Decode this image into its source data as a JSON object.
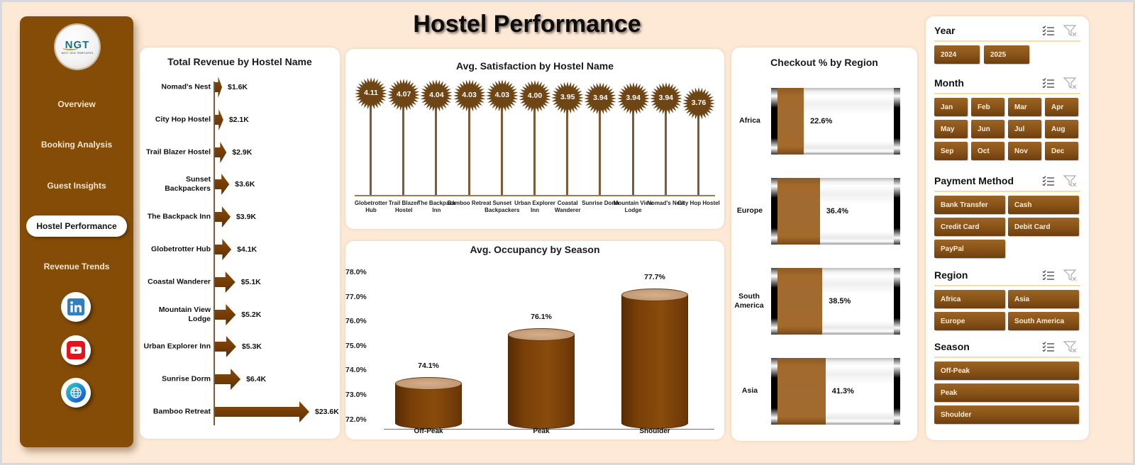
{
  "header": {
    "title": "Hostel Performance"
  },
  "sidebar": {
    "logo": {
      "text": "NGT",
      "subtitle": "NEXT GEN TEMPLATES"
    },
    "items": [
      {
        "label": "Overview",
        "active": false
      },
      {
        "label": "Booking Analysis",
        "active": false
      },
      {
        "label": "Guest Insights",
        "active": false
      },
      {
        "label": "Hostel Performance",
        "active": true
      },
      {
        "label": "Revenue Trends",
        "active": false
      }
    ],
    "social": [
      {
        "icon": "linkedin-icon",
        "glyph": "in"
      },
      {
        "icon": "youtube-icon",
        "glyph": "▶"
      },
      {
        "icon": "globe-icon",
        "glyph": "🌐"
      }
    ]
  },
  "colors": {
    "brand": "#844c06",
    "page_bg": "#fde9d6",
    "bar": "#7a3f06",
    "fill": "#a06a30",
    "accent_line": "#f1dfa3"
  },
  "revenue_chart": {
    "title": "Total Revenue  by Hostel Name",
    "rows": [
      {
        "name": "Nomad's Nest",
        "label": "$1.6K"
      },
      {
        "name": "City Hop Hostel",
        "label": "$2.1K"
      },
      {
        "name": "Trail Blazer Hostel",
        "label": "$2.9K"
      },
      {
        "name": "Sunset Backpackers",
        "label": "$3.6K"
      },
      {
        "name": "The Backpack Inn",
        "label": "$3.9K"
      },
      {
        "name": "Globetrotter Hub",
        "label": "$4.1K"
      },
      {
        "name": "Coastal Wanderer",
        "label": "$5.1K"
      },
      {
        "name": "Mountain View Lodge",
        "label": "$5.2K"
      },
      {
        "name": "Urban Explorer Inn",
        "label": "$5.3K"
      },
      {
        "name": "Sunrise Dorm",
        "label": "$6.4K"
      },
      {
        "name": "Bamboo Retreat",
        "label": "$23.6K"
      }
    ]
  },
  "satisfaction_chart": {
    "title": "Avg. Satisfaction by Hostel Name",
    "items": [
      {
        "name": "Globetrotter Hub",
        "label": "4.11"
      },
      {
        "name": "Trail Blazer Hostel",
        "label": "4.07"
      },
      {
        "name": "The Backpack Inn",
        "label": "4.04"
      },
      {
        "name": "Bamboo Retreat",
        "label": "4.03"
      },
      {
        "name": "Sunset Backpackers",
        "label": "4.03"
      },
      {
        "name": "Urban Explorer Inn",
        "label": "4.00"
      },
      {
        "name": "Coastal Wanderer",
        "label": "3.95"
      },
      {
        "name": "Sunrise Dorm",
        "label": "3.94"
      },
      {
        "name": "Mountain View Lodge",
        "label": "3.94"
      },
      {
        "name": "Nomad's Nest",
        "label": "3.94"
      },
      {
        "name": "City Hop Hostel",
        "label": "3.76"
      }
    ]
  },
  "occupancy_chart": {
    "title": "Avg. Occupancy by Season",
    "ticks": [
      "78.0%",
      "77.0%",
      "76.0%",
      "75.0%",
      "74.0%",
      "73.0%",
      "72.0%"
    ],
    "items": [
      {
        "name": "Off-Peak",
        "label": "74.1%"
      },
      {
        "name": "Peak",
        "label": "76.1%"
      },
      {
        "name": "Shoulder",
        "label": "77.7%"
      }
    ]
  },
  "checkout_chart": {
    "title": "Checkout  % by Region",
    "items": [
      {
        "name": "Africa",
        "label": "22.6%"
      },
      {
        "name": "Europe",
        "label": "36.4%"
      },
      {
        "name": "South America",
        "label": "38.5%"
      },
      {
        "name": "Asia",
        "label": "41.3%"
      }
    ]
  },
  "slicers": {
    "year": {
      "title": "Year",
      "options": [
        "2024",
        "2025"
      ]
    },
    "month": {
      "title": "Month",
      "options": [
        "Jan",
        "Feb",
        "Mar",
        "Apr",
        "May",
        "Jun",
        "Jul",
        "Aug",
        "Sep",
        "Oct",
        "Nov",
        "Dec"
      ]
    },
    "payment": {
      "title": "Payment Method",
      "options": [
        "Bank Transfer",
        "Cash",
        "Credit Card",
        "Debit Card",
        "PayPal"
      ]
    },
    "region": {
      "title": "Region",
      "options": [
        "Africa",
        "Asia",
        "Europe",
        "South America"
      ]
    },
    "season": {
      "title": "Season",
      "options": [
        "Off-Peak",
        "Peak",
        "Shoulder"
      ]
    }
  },
  "chart_data": [
    {
      "type": "bar",
      "title": "Total Revenue  by Hostel Name",
      "orientation": "horizontal",
      "categories": [
        "Nomad's Nest",
        "City Hop Hostel",
        "Trail Blazer Hostel",
        "Sunset Backpackers",
        "The Backpack Inn",
        "Globetrotter Hub",
        "Coastal Wanderer",
        "Mountain View Lodge",
        "Urban Explorer Inn",
        "Sunrise Dorm",
        "Bamboo Retreat"
      ],
      "values": [
        1.6,
        2.1,
        2.9,
        3.6,
        3.9,
        4.1,
        5.1,
        5.2,
        5.3,
        6.4,
        23.6
      ],
      "unit": "$K",
      "xlabel": "",
      "ylabel": ""
    },
    {
      "type": "bar",
      "title": "Avg. Satisfaction by Hostel Name",
      "style": "lollipop",
      "categories": [
        "Globetrotter Hub",
        "Trail Blazer Hostel",
        "The Backpack Inn",
        "Bamboo Retreat",
        "Sunset Backpackers",
        "Urban Explorer Inn",
        "Coastal Wanderer",
        "Sunrise Dorm",
        "Mountain View Lodge",
        "Nomad's Nest",
        "City Hop Hostel"
      ],
      "values": [
        4.11,
        4.07,
        4.04,
        4.03,
        4.03,
        4.0,
        3.95,
        3.94,
        3.94,
        3.94,
        3.76
      ],
      "xlabel": "",
      "ylabel": ""
    },
    {
      "type": "bar",
      "title": "Avg. Occupancy by Season",
      "style": "cylinder",
      "categories": [
        "Off-Peak",
        "Peak",
        "Shoulder"
      ],
      "values": [
        74.1,
        76.1,
        77.7
      ],
      "unit": "%",
      "ylim": [
        72.0,
        78.0
      ],
      "yticks": [
        72.0,
        73.0,
        74.0,
        75.0,
        76.0,
        77.0,
        78.0
      ],
      "xlabel": "",
      "ylabel": ""
    },
    {
      "type": "bar",
      "title": "Checkout  % by Region",
      "orientation": "horizontal",
      "style": "battery",
      "categories": [
        "Africa",
        "Europe",
        "South America",
        "Asia"
      ],
      "values": [
        22.6,
        36.4,
        38.5,
        41.3
      ],
      "unit": "%",
      "xlim": [
        0,
        100
      ]
    }
  ]
}
